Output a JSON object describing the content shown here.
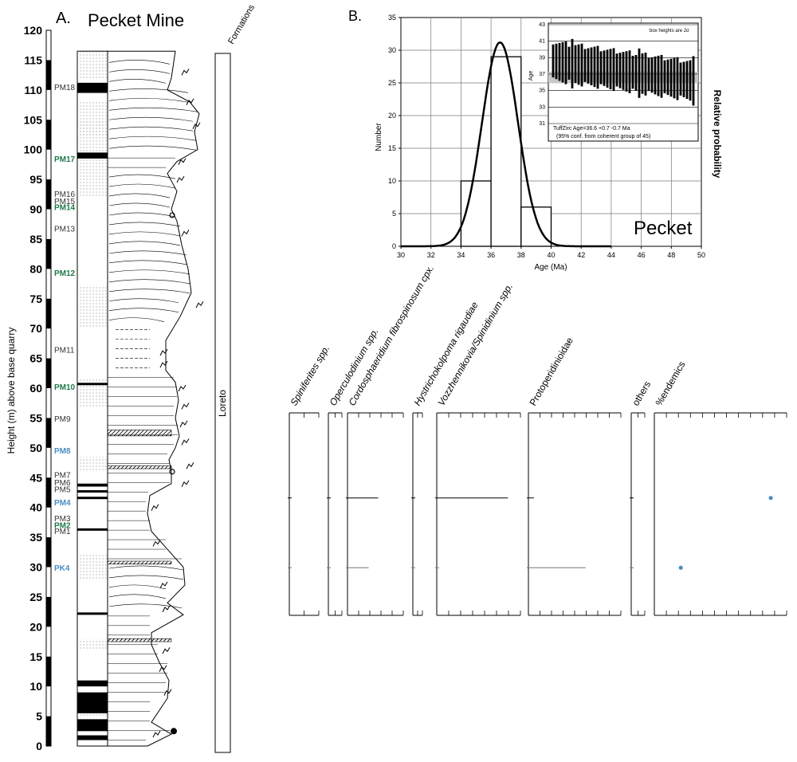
{
  "panel_a": {
    "letter": "A.",
    "title": "Pecket Mine",
    "y_axis_label": "Height (m) above base quarry",
    "y_ticks": [
      0,
      5,
      10,
      15,
      20,
      25,
      30,
      35,
      40,
      45,
      50,
      55,
      60,
      65,
      70,
      75,
      80,
      85,
      90,
      95,
      100,
      105,
      110,
      115,
      120
    ],
    "formations_header": "Formations",
    "formation_name": "Loreto",
    "samples": [
      {
        "label": "PM18",
        "height": 110.5,
        "color": "#333333",
        "bold": false
      },
      {
        "label": "PM17",
        "height": 98.5,
        "color": "#1e7a4a",
        "bold": true
      },
      {
        "label": "PM16",
        "height": 92.6,
        "color": "#333333",
        "bold": false
      },
      {
        "label": "PM15",
        "height": 91.4,
        "color": "#333333",
        "bold": false
      },
      {
        "label": "PM14",
        "height": 90.4,
        "color": "#1e7a4a",
        "bold": true
      },
      {
        "label": "PM13",
        "height": 86.8,
        "color": "#333333",
        "bold": false
      },
      {
        "label": "PM12",
        "height": 79.4,
        "color": "#1e7a4a",
        "bold": true
      },
      {
        "label": "PM11",
        "height": 66.5,
        "color": "#333333",
        "bold": false
      },
      {
        "label": "PM10",
        "height": 60.3,
        "color": "#1e7a4a",
        "bold": true
      },
      {
        "label": "PM9",
        "height": 54.9,
        "color": "#333333",
        "bold": false
      },
      {
        "label": "PM8",
        "height": 49.6,
        "color": "#4a8ec2",
        "bold": true
      },
      {
        "label": "PM7",
        "height": 45.5,
        "color": "#333333",
        "bold": false
      },
      {
        "label": "PM6",
        "height": 44.2,
        "color": "#333333",
        "bold": false
      },
      {
        "label": "PM5",
        "height": 43.1,
        "color": "#333333",
        "bold": false
      },
      {
        "label": "PM4",
        "height": 40.9,
        "color": "#4a8ec2",
        "bold": true
      },
      {
        "label": "PM3",
        "height": 38.2,
        "color": "#333333",
        "bold": false
      },
      {
        "label": "PM2",
        "height": 37.1,
        "color": "#1e7a4a",
        "bold": true
      },
      {
        "label": "PM1",
        "height": 36.1,
        "color": "#333333",
        "bold": false
      },
      {
        "label": "PK4",
        "height": 29.9,
        "color": "#4a8ec2",
        "bold": true
      }
    ]
  },
  "panel_b": {
    "letter": "B.",
    "site_label": "Pecket",
    "inset": {
      "note": "box heights are 2σ",
      "ylabel": "Age",
      "y_ticks": [
        31,
        33,
        35,
        37,
        39,
        41,
        43
      ],
      "ylim": [
        31,
        43
      ],
      "age_line": 36.6,
      "caption_line1": "TuffZirc Age=36.6   +0.7 -0.7 Ma",
      "caption_line2": "(95% conf. from coherent group of 45)"
    }
  },
  "chart_data": {
    "type": "bar",
    "title": "",
    "xlabel": "Age (Ma)",
    "ylabel": "Number",
    "y2label": "Relative probability",
    "xlim": [
      30,
      50
    ],
    "ylim": [
      0,
      35
    ],
    "x_ticks": [
      30,
      32,
      34,
      36,
      38,
      40,
      42,
      44,
      46,
      48,
      50
    ],
    "y_ticks": [
      0,
      5,
      10,
      15,
      20,
      25,
      30,
      35
    ],
    "bins": [
      {
        "from": 34,
        "to": 36,
        "count": 10
      },
      {
        "from": 36,
        "to": 38,
        "count": 29
      },
      {
        "from": 38,
        "to": 40,
        "count": 6
      }
    ],
    "probability_curve": {
      "mean": 36.6,
      "sd": 1.2,
      "peak": 31.2
    },
    "grid": true
  },
  "panel_c": {
    "columns": [
      {
        "name": "Spiniferites spp.",
        "italic": true
      },
      {
        "name": "Operculodinium spp.",
        "italic": true
      },
      {
        "name": "Cordosphaeridium fibrospinosum cpx.",
        "italic": true
      },
      {
        "name": "Hystrichokolpoma rigaudiae",
        "italic": true
      },
      {
        "name": "Vozzhennikovia/Spinidinium spp.",
        "italic": true
      },
      {
        "name": "Protoperidinioidae",
        "italic": false
      },
      {
        "name": "others",
        "italic": false
      },
      {
        "name": "%endemics",
        "italic": false
      }
    ],
    "sample_heights": [
      41.6,
      29.9
    ],
    "bars": {
      "Spiniferites spp.": [
        0.01,
        0.02
      ],
      "Operculodinium spp.": [
        0.01,
        0.02
      ],
      "Cordosphaeridium fibrospinosum cpx.": [
        0.55,
        0.38
      ],
      "Hystrichokolpoma rigaudiae": [
        0.01,
        0.01
      ],
      "Vozzhennikovia/Spinidinium spp.": [
        0.85,
        0.0
      ],
      "Protoperidinioidae": [
        0.06,
        0.62
      ],
      "others": [
        0.01,
        0.02
      ]
    },
    "endemics_fraction": [
      0.88,
      0.2
    ],
    "marker_color": "#4a8ec2"
  }
}
